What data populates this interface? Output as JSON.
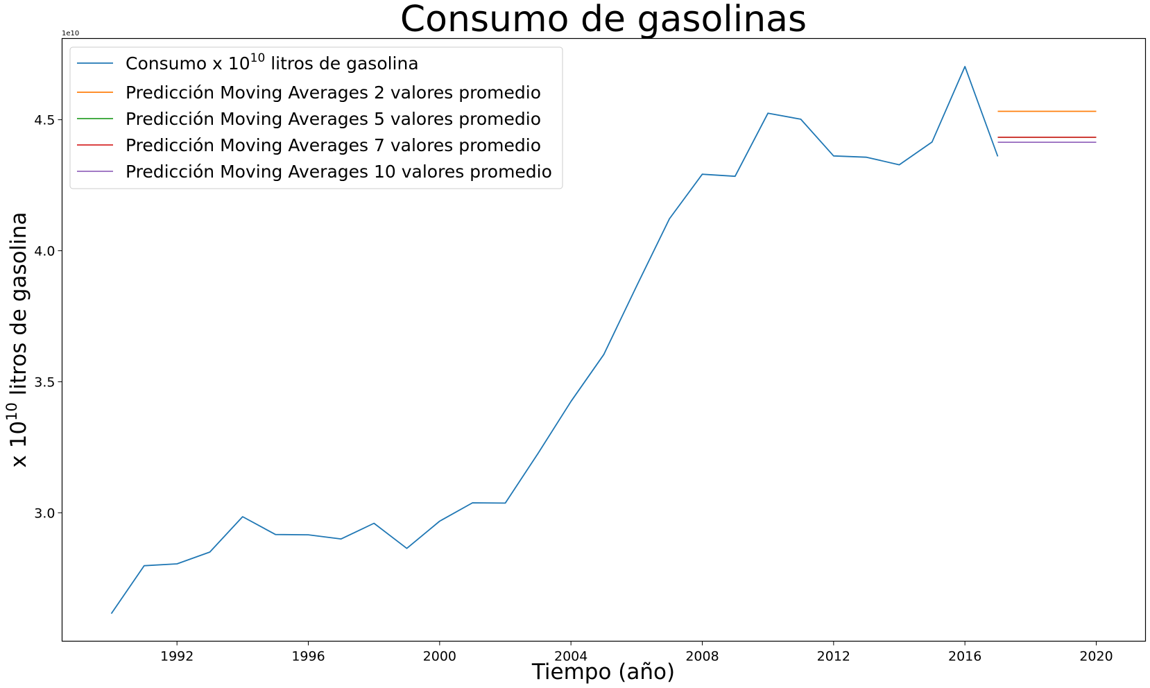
{
  "chart_data": {
    "type": "line",
    "title": "Consumo de gasolinas",
    "xlabel": "Tiempo (año)",
    "ylabel": "x 10^10 litros de gasolina",
    "ylabel_parts": {
      "prefix": "x 10",
      "sup": "10",
      "suffix": " litros de gasolina"
    },
    "offset_text": "1e10",
    "xlim": [
      1988.5,
      2021.5
    ],
    "ylim": [
      25.1,
      48.1
    ],
    "y_scale": 1000000000.0,
    "xticks": [
      1992,
      1996,
      2000,
      2004,
      2008,
      2012,
      2016,
      2020
    ],
    "yticks": [
      30,
      35,
      40,
      45
    ],
    "ytick_labels": [
      "3.0",
      "3.5",
      "4.0",
      "4.5"
    ],
    "grid": false,
    "legend_position": "upper left",
    "series": [
      {
        "name": "Consumo x 10^10 litros de gasolina",
        "name_parts": {
          "prefix": "Consumo x 10",
          "sup": "10",
          "suffix": " litros de gasolina"
        },
        "color": "#1f77b4",
        "x": [
          1990,
          1991,
          1992,
          1993,
          1994,
          1995,
          1996,
          1997,
          1998,
          1999,
          2000,
          2001,
          2002,
          2003,
          2004,
          2005,
          2006,
          2007,
          2008,
          2009,
          2010,
          2011,
          2012,
          2013,
          2014,
          2015,
          2016,
          2017
        ],
        "y": [
          26.15,
          27.98,
          28.05,
          28.5,
          29.85,
          29.17,
          29.16,
          29.0,
          29.6,
          28.64,
          29.68,
          30.38,
          30.37,
          32.27,
          34.25,
          36.04,
          38.65,
          41.22,
          42.92,
          42.84,
          45.25,
          45.02,
          43.62,
          43.57,
          43.28,
          44.15,
          47.03,
          43.6
        ]
      },
      {
        "name": "Predicción Moving Averages 2 valores promedio",
        "color": "#ff7f0e",
        "x": [
          2017,
          2020
        ],
        "y": [
          45.32,
          45.32
        ]
      },
      {
        "name": "Predicción Moving Averages 5 valores promedio",
        "color": "#2ca02c",
        "x": [
          2017,
          2020
        ],
        "y": [
          44.33,
          44.33
        ]
      },
      {
        "name": "Predicción Moving Averages 7 valores promedio",
        "color": "#d62728",
        "x": [
          2017,
          2020
        ],
        "y": [
          44.33,
          44.33
        ]
      },
      {
        "name": "Predicción Moving Averages 10 valores promedio",
        "color": "#9467bd",
        "x": [
          2017,
          2020
        ],
        "y": [
          44.14,
          44.14
        ]
      }
    ]
  }
}
